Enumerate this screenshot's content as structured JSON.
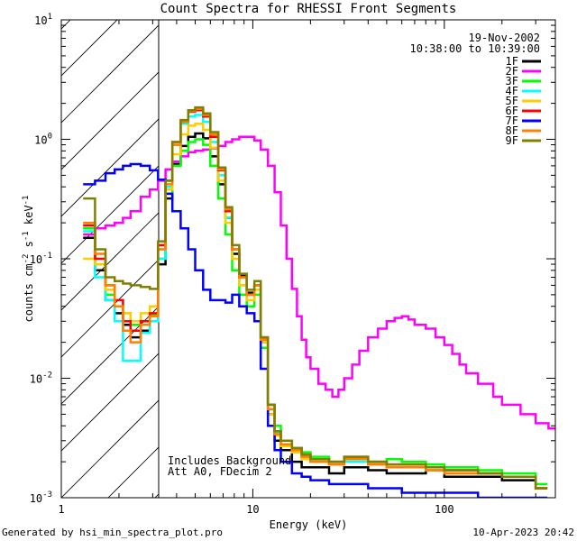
{
  "chart_data": {
    "type": "line",
    "title": "Count Spectra for RHESSI Front Segments",
    "xlabel": "Energy (keV)",
    "ylabel_main": "counts cm",
    "ylabel_sup1": "-2",
    "ylabel_mid1": " s",
    "ylabel_sup2": "-1",
    "ylabel_mid2": " keV",
    "ylabel_sup3": "-1",
    "xscale": "log",
    "yscale": "log",
    "xlim": [
      1,
      380
    ],
    "ylim": [
      0.001,
      10
    ],
    "x_ticks": [
      {
        "value": 1,
        "label": "1"
      },
      {
        "value": 10,
        "label": "10"
      },
      {
        "value": 100,
        "label": "100"
      }
    ],
    "y_ticks": [
      {
        "value": 0.001,
        "base": "10",
        "exp": "-3"
      },
      {
        "value": 0.01,
        "base": "10",
        "exp": "-2"
      },
      {
        "value": 0.1,
        "base": "10",
        "exp": "-1"
      },
      {
        "value": 1,
        "base": "10",
        "exp": "0"
      },
      {
        "value": 10,
        "base": "10",
        "exp": "1"
      }
    ],
    "shaded_region": {
      "xmin": 1,
      "xmax": 3,
      "pattern": "diagonal-hatch"
    },
    "date_text": "19-Nov-2002",
    "time_text": "10:38:00 to 10:39:00",
    "annotation_line1": "Includes Background",
    "annotation_line2": "Att A0, FDecim 2",
    "footer_left": "Generated by hsi_min_spectra_plot.pro",
    "footer_right": "10-Apr-2023 20:42",
    "series": [
      {
        "name": "1F",
        "color": "#000000",
        "x": [
          1.3,
          1.5,
          1.7,
          1.9,
          2.1,
          2.3,
          2.6,
          2.9,
          3.2,
          3.5,
          3.8,
          4.2,
          4.6,
          5.0,
          5.5,
          6.0,
          6.6,
          7.2,
          7.8,
          8.5,
          9.3,
          10.2,
          11,
          12,
          13,
          14,
          16,
          18,
          20,
          25,
          30,
          40,
          50,
          60,
          80,
          100,
          150,
          200,
          300
        ],
        "values": [
          0.15,
          0.08,
          0.045,
          0.035,
          0.028,
          0.022,
          0.025,
          0.03,
          0.09,
          0.32,
          0.62,
          0.88,
          1.05,
          1.12,
          1.02,
          0.72,
          0.42,
          0.22,
          0.11,
          0.072,
          0.052,
          0.06,
          0.02,
          0.005,
          0.003,
          0.0025,
          0.002,
          0.0018,
          0.0018,
          0.0016,
          0.0018,
          0.0017,
          0.0016,
          0.0016,
          0.0017,
          0.0015,
          0.0015,
          0.0014,
          0.0012
        ]
      },
      {
        "name": "2F",
        "color": "#ff00ff",
        "x": [
          1.3,
          1.5,
          1.7,
          1.9,
          2.1,
          2.3,
          2.6,
          2.9,
          3.2,
          3.5,
          3.8,
          4.2,
          4.6,
          5.0,
          5.5,
          6.0,
          6.6,
          7.2,
          7.8,
          8.5,
          9.3,
          10.2,
          11,
          12,
          13,
          14,
          15,
          16,
          17,
          18,
          19,
          20,
          22,
          24,
          26,
          28,
          30,
          33,
          36,
          40,
          45,
          50,
          55,
          60,
          65,
          70,
          80,
          90,
          100,
          110,
          120,
          130,
          150,
          180,
          200,
          250,
          300,
          350
        ],
        "values": [
          0.16,
          0.18,
          0.19,
          0.2,
          0.22,
          0.25,
          0.33,
          0.38,
          0.45,
          0.56,
          0.65,
          0.72,
          0.78,
          0.8,
          0.82,
          0.84,
          0.88,
          0.95,
          1.0,
          1.05,
          1.05,
          0.98,
          0.82,
          0.6,
          0.36,
          0.19,
          0.1,
          0.056,
          0.033,
          0.021,
          0.015,
          0.012,
          0.009,
          0.008,
          0.007,
          0.008,
          0.01,
          0.013,
          0.017,
          0.022,
          0.026,
          0.03,
          0.032,
          0.033,
          0.031,
          0.028,
          0.026,
          0.022,
          0.019,
          0.016,
          0.013,
          0.011,
          0.009,
          0.007,
          0.006,
          0.005,
          0.0042,
          0.0038
        ]
      },
      {
        "name": "3F",
        "color": "#00ff00",
        "x": [
          1.3,
          1.5,
          1.7,
          1.9,
          2.1,
          2.3,
          2.6,
          2.9,
          3.2,
          3.5,
          3.8,
          4.2,
          4.6,
          5.0,
          5.5,
          6.0,
          6.6,
          7.2,
          7.8,
          8.5,
          9.3,
          10.2,
          11,
          12,
          13,
          14,
          16,
          18,
          20,
          25,
          30,
          40,
          50,
          60,
          80,
          100,
          150,
          200,
          300
        ],
        "values": [
          0.18,
          0.09,
          0.05,
          0.04,
          0.035,
          0.028,
          0.03,
          0.034,
          0.1,
          0.35,
          0.6,
          0.8,
          0.95,
          1.0,
          0.9,
          0.6,
          0.32,
          0.16,
          0.08,
          0.05,
          0.04,
          0.05,
          0.018,
          0.006,
          0.004,
          0.003,
          0.0026,
          0.0024,
          0.0022,
          0.002,
          0.0021,
          0.002,
          0.0021,
          0.002,
          0.0019,
          0.0018,
          0.0017,
          0.0016,
          0.0013
        ]
      },
      {
        "name": "4F",
        "color": "#00ffff",
        "x": [
          1.3,
          1.5,
          1.7,
          1.9,
          2.1,
          2.3,
          2.6,
          2.9,
          3.2,
          3.5,
          3.8,
          4.2,
          4.6,
          5.0,
          5.5,
          6.0,
          6.6,
          7.2,
          7.8,
          8.5,
          9.3,
          10.2,
          11,
          12,
          13,
          14,
          16,
          18,
          20,
          25,
          30,
          40,
          50,
          60,
          80,
          100,
          150,
          200,
          300
        ],
        "values": [
          0.17,
          0.07,
          0.045,
          0.03,
          0.014,
          0.014,
          0.024,
          0.03,
          0.1,
          0.4,
          0.9,
          1.35,
          1.55,
          1.6,
          1.4,
          0.95,
          0.5,
          0.22,
          0.1,
          0.06,
          0.045,
          0.055,
          0.02,
          0.0055,
          0.0035,
          0.0028,
          0.0024,
          0.0022,
          0.002,
          0.0019,
          0.002,
          0.0019,
          0.0018,
          0.0018,
          0.0017,
          0.0017,
          0.0016,
          0.0015,
          0.0012
        ]
      },
      {
        "name": "5F",
        "color": "#ffcc00",
        "x": [
          1.3,
          1.5,
          1.7,
          1.9,
          2.1,
          2.3,
          2.6,
          2.9,
          3.2,
          3.5,
          3.8,
          4.2,
          4.6,
          5.0,
          5.5,
          6.0,
          6.6,
          7.2,
          7.8,
          8.5,
          9.3,
          10.2,
          11,
          12,
          13,
          14,
          16,
          18,
          20,
          25,
          30,
          40,
          50,
          60,
          80,
          100,
          150,
          200,
          300
        ],
        "values": [
          0.1,
          0.09,
          0.055,
          0.04,
          0.035,
          0.03,
          0.035,
          0.04,
          0.12,
          0.38,
          0.75,
          1.1,
          1.3,
          1.35,
          1.2,
          0.85,
          0.45,
          0.2,
          0.1,
          0.06,
          0.045,
          0.055,
          0.02,
          0.005,
          0.0033,
          0.0027,
          0.0024,
          0.0021,
          0.002,
          0.0019,
          0.0021,
          0.0019,
          0.0018,
          0.0018,
          0.0017,
          0.0016,
          0.0016,
          0.0015,
          0.0012
        ]
      },
      {
        "name": "6F",
        "color": "#ff0000",
        "x": [
          1.3,
          1.5,
          1.7,
          1.9,
          2.1,
          2.3,
          2.6,
          2.9,
          3.2,
          3.5,
          3.8,
          4.2,
          4.6,
          5.0,
          5.5,
          6.0,
          6.6,
          7.2,
          7.8,
          8.5,
          9.3,
          10.2,
          11,
          12,
          13,
          14,
          16,
          18,
          20,
          25,
          30,
          40,
          50,
          60,
          80,
          100,
          150,
          200,
          300
        ],
        "values": [
          0.19,
          0.1,
          0.06,
          0.045,
          0.03,
          0.025,
          0.03,
          0.035,
          0.13,
          0.45,
          0.95,
          1.4,
          1.7,
          1.75,
          1.55,
          1.05,
          0.55,
          0.25,
          0.12,
          0.07,
          0.05,
          0.06,
          0.022,
          0.006,
          0.0036,
          0.003,
          0.0026,
          0.0023,
          0.0021,
          0.002,
          0.0022,
          0.002,
          0.0019,
          0.0019,
          0.0018,
          0.0017,
          0.0016,
          0.0015,
          0.0012
        ]
      },
      {
        "name": "7F",
        "color": "#0000ff",
        "x": [
          1.3,
          1.5,
          1.7,
          1.9,
          2.1,
          2.3,
          2.6,
          2.9,
          3.2,
          3.5,
          3.8,
          4.2,
          4.6,
          5.0,
          5.5,
          6.0,
          6.6,
          7.2,
          7.8,
          8.5,
          9.3,
          10.2,
          11,
          12,
          13,
          14,
          16,
          18,
          20,
          25,
          30,
          40,
          50,
          60,
          80,
          100,
          150,
          200,
          300
        ],
        "values": [
          0.42,
          0.45,
          0.52,
          0.56,
          0.6,
          0.62,
          0.6,
          0.55,
          0.46,
          0.35,
          0.25,
          0.18,
          0.12,
          0.08,
          0.055,
          0.045,
          0.045,
          0.043,
          0.05,
          0.04,
          0.035,
          0.03,
          0.012,
          0.004,
          0.0025,
          0.002,
          0.0016,
          0.0015,
          0.0014,
          0.0013,
          0.0013,
          0.0012,
          0.0012,
          0.0011,
          0.0011,
          0.0011,
          0.001,
          0.001,
          0.001
        ]
      },
      {
        "name": "8F",
        "color": "#ff8000",
        "x": [
          1.3,
          1.5,
          1.7,
          1.9,
          2.1,
          2.3,
          2.6,
          2.9,
          3.2,
          3.5,
          3.8,
          4.2,
          4.6,
          5.0,
          5.5,
          6.0,
          6.6,
          7.2,
          7.8,
          8.5,
          9.3,
          10.2,
          11,
          12,
          13,
          14,
          16,
          18,
          20,
          25,
          30,
          40,
          50,
          60,
          80,
          100,
          150,
          200,
          300
        ],
        "values": [
          0.2,
          0.11,
          0.06,
          0.04,
          0.025,
          0.02,
          0.028,
          0.033,
          0.12,
          0.42,
          0.9,
          1.4,
          1.72,
          1.8,
          1.6,
          1.1,
          0.56,
          0.26,
          0.12,
          0.07,
          0.05,
          0.06,
          0.021,
          0.0055,
          0.0034,
          0.0028,
          0.0025,
          0.0022,
          0.002,
          0.0019,
          0.0021,
          0.0019,
          0.0018,
          0.0018,
          0.0017,
          0.0016,
          0.0016,
          0.0015,
          0.0012
        ]
      },
      {
        "name": "9F",
        "color": "#808000",
        "x": [
          1.3,
          1.5,
          1.7,
          1.9,
          2.1,
          2.3,
          2.6,
          2.9,
          3.2,
          3.5,
          3.8,
          4.2,
          4.6,
          5.0,
          5.5,
          6.0,
          6.6,
          7.2,
          7.8,
          8.5,
          9.3,
          10.2,
          11,
          12,
          13,
          14,
          16,
          18,
          20,
          25,
          30,
          40,
          50,
          60,
          80,
          100,
          150,
          200,
          300
        ],
        "values": [
          0.32,
          0.12,
          0.07,
          0.065,
          0.062,
          0.06,
          0.058,
          0.056,
          0.14,
          0.45,
          0.95,
          1.45,
          1.75,
          1.85,
          1.65,
          1.15,
          0.58,
          0.27,
          0.13,
          0.075,
          0.055,
          0.065,
          0.022,
          0.006,
          0.0036,
          0.003,
          0.0026,
          0.0023,
          0.0021,
          0.002,
          0.0022,
          0.002,
          0.0019,
          0.0019,
          0.0018,
          0.0017,
          0.0016,
          0.0015,
          0.0012
        ]
      }
    ]
  }
}
